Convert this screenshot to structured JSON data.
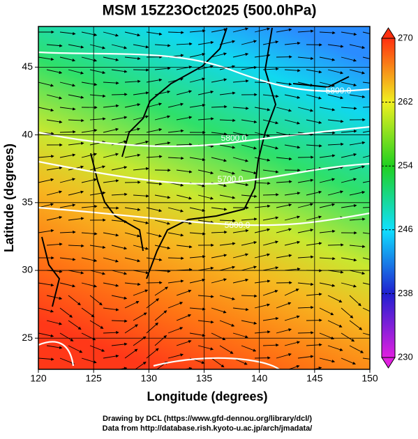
{
  "chart_data": {
    "type": "map",
    "title": "MSM 15Z23Oct2025 (500.0hPa)",
    "x_label": "Longitude (degrees)",
    "y_label": "Latitude  (degrees)",
    "xlim": [
      120,
      150
    ],
    "xticks": [
      120,
      125,
      130,
      135,
      140,
      145,
      150
    ],
    "ylim": [
      22.7,
      48
    ],
    "yticks": [
      25,
      30,
      35,
      40,
      45
    ],
    "colorbar": {
      "lim": [
        230,
        270
      ],
      "ticks": [
        230,
        238,
        246,
        254,
        262,
        270
      ]
    },
    "contour_labels": [
      "5800.0",
      "5800.0",
      "5700.0",
      "5800.0"
    ],
    "credits": [
      "Drawing by DCL (https://www.gfd-dennou.org/library/dcl/)",
      "Data from http://database.rish.kyoto-u.ac.jp/arch/jmadata/"
    ]
  }
}
